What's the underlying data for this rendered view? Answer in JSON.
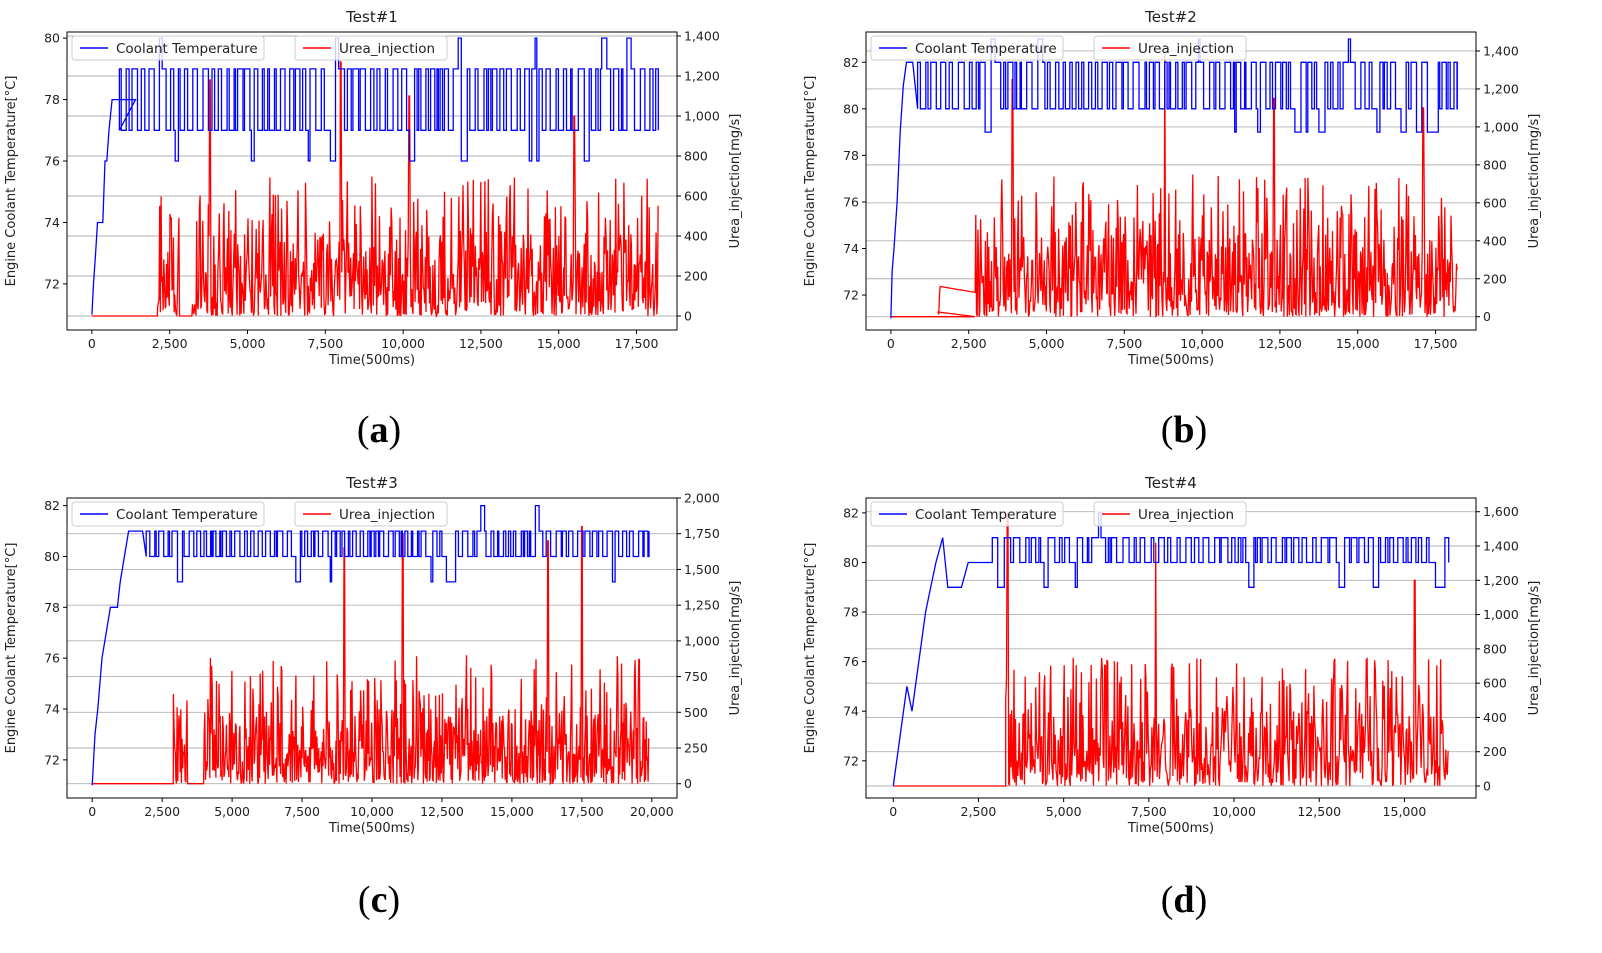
{
  "figure": {
    "caption_labels": [
      "(a)",
      "(b)",
      "(c)",
      "(d)"
    ]
  },
  "colors": {
    "coolant": "#0000ff",
    "urea": "#ff0000",
    "grid": "#b0b0b0",
    "axes": "#000000"
  },
  "chart_data": [
    {
      "type": "line",
      "title": "Test#1",
      "caption": "(a)",
      "xlabel": "Time(500ms)",
      "ylabel_left": "Engine Coolant Temperature[°C]",
      "ylabel_right": "Urea_injection[mg/s]",
      "xlim": [
        -800,
        18800
      ],
      "xticks": [
        0,
        2500,
        5000,
        7500,
        10000,
        12500,
        15000,
        17500
      ],
      "xtick_labels": [
        "0",
        "2,500",
        "5,000",
        "7,500",
        "10,000",
        "12,500",
        "15,000",
        "17,500"
      ],
      "ylim_left": [
        70.5,
        80.2
      ],
      "yticks_left": [
        72,
        74,
        76,
        78,
        80
      ],
      "ytick_labels_left": [
        "72",
        "74",
        "76",
        "78",
        "80"
      ],
      "ylim_right": [
        -70,
        1420
      ],
      "yticks_right": [
        0,
        200,
        400,
        600,
        800,
        1000,
        1200,
        1400
      ],
      "ytick_labels_right": [
        "0",
        "200",
        "400",
        "600",
        "800",
        "1,000",
        "1,200",
        "1,400"
      ],
      "series": [
        {
          "name": "Coolant Temperature",
          "axis": "left",
          "x_end": 18200,
          "seed": 11,
          "ramp": [
            [
              0,
              71
            ],
            [
              50,
              72
            ],
            [
              120,
              73
            ],
            [
              180,
              74
            ],
            [
              350,
              74
            ],
            [
              420,
              76
            ],
            [
              480,
              76
            ],
            [
              550,
              77
            ],
            [
              650,
              78
            ],
            [
              1400,
              78
            ]
          ],
          "steady_low": 77,
          "steady_high": 79,
          "start_osc": 700,
          "rare_high": 80
        },
        {
          "name": "Urea_injection",
          "axis": "right",
          "x_end": 18200,
          "seed": 21,
          "zero_until": 2100,
          "bursts": [
            [
              2100,
              2800,
              600
            ],
            [
              3200,
              18200,
              700
            ]
          ],
          "peaks": [
            [
              3800,
              1180
            ],
            [
              8000,
              1270
            ],
            [
              10200,
              1100
            ],
            [
              15500,
              1000
            ]
          ]
        }
      ],
      "legend": [
        {
          "label": "Coolant Temperature"
        },
        {
          "label": "Urea_injection"
        }
      ]
    },
    {
      "type": "line",
      "title": "Test#2",
      "caption": "(b)",
      "xlabel": "Time(500ms)",
      "ylabel_left": "Engine Coolant Temperature[°C]",
      "ylabel_right": "Urea_injection[mg/s]",
      "xlim": [
        -800,
        18800
      ],
      "xticks": [
        0,
        2500,
        5000,
        7500,
        10000,
        12500,
        15000,
        17500
      ],
      "xtick_labels": [
        "0",
        "2,500",
        "5,000",
        "7,500",
        "10,000",
        "12,500",
        "15,000",
        "17,500"
      ],
      "ylim_left": [
        70.5,
        83.3
      ],
      "yticks_left": [
        72,
        74,
        76,
        78,
        80,
        82
      ],
      "ytick_labels_left": [
        "72",
        "74",
        "76",
        "78",
        "80",
        "82"
      ],
      "ylim_right": [
        -70,
        1500
      ],
      "yticks_right": [
        0,
        200,
        400,
        600,
        800,
        1000,
        1200,
        1400
      ],
      "ytick_labels_right": [
        "0",
        "200",
        "400",
        "600",
        "800",
        "1,000",
        "1,200",
        "1,400"
      ],
      "series": [
        {
          "name": "Coolant Temperature",
          "axis": "left",
          "x_end": 18200,
          "seed": 12,
          "ramp": [
            [
              0,
              71
            ],
            [
              40,
              73
            ],
            [
              100,
              74
            ],
            [
              200,
              76
            ],
            [
              300,
              79
            ],
            [
              400,
              81
            ],
            [
              500,
              82
            ],
            [
              700,
              82
            ]
          ],
          "steady_low": 80,
          "steady_high": 82,
          "start_osc": 700,
          "rare_high": 83
        },
        {
          "name": "Urea_injection",
          "axis": "right",
          "x_end": 18200,
          "seed": 22,
          "zero_until": 2700,
          "bursts": [
            [
              1500,
              1600,
              250
            ],
            [
              2700,
              18200,
              750
            ]
          ],
          "peaks": [
            [
              3900,
              1250
            ],
            [
              8800,
              1380
            ],
            [
              12300,
              1150
            ],
            [
              17100,
              1100
            ]
          ]
        }
      ],
      "legend": [
        {
          "label": "Coolant Temperature"
        },
        {
          "label": "Urea_injection"
        }
      ]
    },
    {
      "type": "line",
      "title": "Test#3",
      "caption": "(c)",
      "xlabel": "Time(500ms)",
      "ylabel_left": "Engine Coolant Temperature[°C]",
      "ylabel_right": "Urea_injection[mg/s]",
      "xlim": [
        -900,
        20900
      ],
      "xticks": [
        0,
        2500,
        5000,
        7500,
        10000,
        12500,
        15000,
        17500,
        20000
      ],
      "xtick_labels": [
        "0",
        "2,500",
        "5,000",
        "7,500",
        "10,000",
        "12,500",
        "15,000",
        "17,500",
        "20,000"
      ],
      "ylim_left": [
        70.5,
        82.3
      ],
      "yticks_left": [
        72,
        74,
        76,
        78,
        80,
        82
      ],
      "ytick_labels_left": [
        "72",
        "74",
        "76",
        "78",
        "80",
        "82"
      ],
      "ylim_right": [
        -100,
        2000
      ],
      "yticks_right": [
        0,
        250,
        500,
        750,
        1000,
        1250,
        1500,
        1750,
        2000
      ],
      "ytick_labels_right": [
        "0",
        "250",
        "500",
        "750",
        "1,000",
        "1,250",
        "1,500",
        "1,750",
        "2,000"
      ],
      "series": [
        {
          "name": "Coolant Temperature",
          "axis": "left",
          "x_end": 19900,
          "seed": 13,
          "ramp": [
            [
              0,
              71
            ],
            [
              100,
              73
            ],
            [
              200,
              74
            ],
            [
              350,
              76
            ],
            [
              500,
              77
            ],
            [
              650,
              78
            ],
            [
              900,
              78
            ],
            [
              1000,
              79
            ],
            [
              1150,
              80
            ],
            [
              1300,
              81
            ],
            [
              1800,
              81
            ]
          ],
          "steady_low": 80,
          "steady_high": 81,
          "start_osc": 1800,
          "rare_high": 82,
          "high_from": 13800
        },
        {
          "name": "Urea_injection",
          "axis": "right",
          "x_end": 19900,
          "seed": 23,
          "zero_until": 2900,
          "bursts": [
            [
              2900,
              3400,
              700
            ],
            [
              4000,
              19900,
              900
            ]
          ],
          "peaks": [
            [
              9000,
              1650
            ],
            [
              11100,
              1750
            ],
            [
              16300,
              1700
            ],
            [
              17500,
              1800
            ]
          ]
        }
      ],
      "legend": [
        {
          "label": "Coolant Temperature"
        },
        {
          "label": "Urea_injection"
        }
      ]
    },
    {
      "type": "line",
      "title": "Test#4",
      "caption": "(d)",
      "xlabel": "Time(500ms)",
      "ylabel_left": "Engine Coolant Temperature[°C]",
      "ylabel_right": "Urea_injection[mg/s]",
      "xlim": [
        -800,
        17100
      ],
      "xticks": [
        0,
        2500,
        5000,
        7500,
        10000,
        12500,
        15000
      ],
      "xtick_labels": [
        "0",
        "2,500",
        "5,000",
        "7,500",
        "10,000",
        "12,500",
        "15,000"
      ],
      "ylim_left": [
        70.5,
        82.6
      ],
      "yticks_left": [
        72,
        74,
        76,
        78,
        80,
        82
      ],
      "ytick_labels_left": [
        "72",
        "74",
        "76",
        "78",
        "80",
        "82"
      ],
      "ylim_right": [
        -70,
        1680
      ],
      "yticks_right": [
        0,
        200,
        400,
        600,
        800,
        1000,
        1200,
        1400,
        1600
      ],
      "ytick_labels_right": [
        "0",
        "200",
        "400",
        "600",
        "800",
        "1,000",
        "1,200",
        "1,400",
        "1,600"
      ],
      "series": [
        {
          "name": "Coolant Temperature",
          "axis": "left",
          "x_end": 16300,
          "seed": 14,
          "ramp": [
            [
              0,
              71
            ],
            [
              100,
              72
            ],
            [
              200,
              73
            ],
            [
              300,
              74
            ],
            [
              400,
              75
            ],
            [
              550,
              74
            ],
            [
              650,
              75
            ],
            [
              750,
              76
            ],
            [
              850,
              77
            ],
            [
              950,
              78
            ],
            [
              1100,
              79
            ],
            [
              1250,
              80
            ],
            [
              1450,
              81
            ],
            [
              1600,
              79
            ],
            [
              2000,
              79
            ],
            [
              2200,
              80
            ],
            [
              2800,
              80
            ]
          ],
          "steady_low": 80,
          "steady_high": 81,
          "start_osc": 2800,
          "rare_high": 82
        },
        {
          "name": "Urea_injection",
          "axis": "right",
          "x_end": 16300,
          "seed": 24,
          "zero_until": 3300,
          "bursts": [
            [
              3300,
              16300,
              750
            ]
          ],
          "peaks": [
            [
              3350,
              1590
            ],
            [
              7700,
              1420
            ],
            [
              15300,
              1200
            ]
          ]
        }
      ],
      "legend": [
        {
          "label": "Coolant Temperature"
        },
        {
          "label": "Urea_injection"
        }
      ]
    }
  ]
}
